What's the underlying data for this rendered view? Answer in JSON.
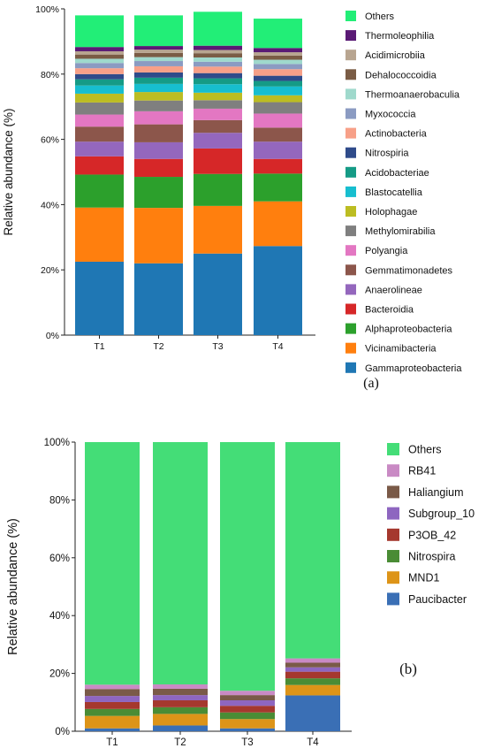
{
  "chart_data": [
    {
      "type": "bar",
      "stacked": true,
      "panel_label": "(a)",
      "ylabel": "Relative abundance (%)",
      "ylim": [
        0,
        100
      ],
      "yticks": [
        "0%",
        "20%",
        "40%",
        "60%",
        "80%",
        "100%"
      ],
      "categories": [
        "T1",
        "T2",
        "T3",
        "T4"
      ],
      "legend_position": "right",
      "series": [
        {
          "name": "Gammaproteobacteria",
          "color": "#1f77b4",
          "values": [
            22.5,
            22.0,
            25.0,
            27.3
          ]
        },
        {
          "name": "Vicinamibacteria",
          "color": "#ff7f0e",
          "values": [
            16.6,
            17.0,
            14.6,
            13.7
          ]
        },
        {
          "name": "Alphaproteobacteria",
          "color": "#2ca02c",
          "values": [
            10.1,
            9.5,
            9.8,
            8.5
          ]
        },
        {
          "name": "Bacteroidia",
          "color": "#d62728",
          "values": [
            5.6,
            5.5,
            7.8,
            4.5
          ]
        },
        {
          "name": "Anaerolineae",
          "color": "#9467bd",
          "values": [
            4.5,
            5.1,
            4.8,
            5.3
          ]
        },
        {
          "name": "Gemmatimonadetes",
          "color": "#8c564b",
          "values": [
            4.6,
            5.5,
            3.9,
            4.3
          ]
        },
        {
          "name": "Polyangia",
          "color": "#e377c2",
          "values": [
            3.7,
            4.0,
            3.5,
            4.3
          ]
        },
        {
          "name": "Methylomirabilia",
          "color": "#7f7f7f",
          "values": [
            3.7,
            3.3,
            2.6,
            3.5
          ]
        },
        {
          "name": "Holophagae",
          "color": "#bcbd22",
          "values": [
            2.7,
            2.6,
            2.3,
            2.1
          ]
        },
        {
          "name": "Blastocatellia",
          "color": "#17becf",
          "values": [
            2.5,
            2.5,
            2.6,
            2.7
          ]
        },
        {
          "name": "Acidobacteriae",
          "color": "#159b86",
          "values": [
            1.9,
            1.9,
            1.8,
            1.7
          ]
        },
        {
          "name": "Nitrospiria",
          "color": "#2f4b8a",
          "values": [
            1.6,
            1.6,
            1.6,
            1.6
          ]
        },
        {
          "name": "Actinobacteria",
          "color": "#f7a088",
          "values": [
            1.8,
            1.9,
            2.0,
            2.0
          ]
        },
        {
          "name": "Myxococcia",
          "color": "#8b9bc2",
          "values": [
            1.6,
            1.6,
            1.5,
            1.6
          ]
        },
        {
          "name": "Thermoanaerobaculia",
          "color": "#9fd9cc",
          "values": [
            1.3,
            1.2,
            1.3,
            1.3
          ]
        },
        {
          "name": "Dehalococcoidia",
          "color": "#7a5c45",
          "values": [
            1.3,
            1.3,
            1.3,
            1.3
          ]
        },
        {
          "name": "Acidimicrobiia",
          "color": "#b8a590",
          "values": [
            1.0,
            1.0,
            1.0,
            1.0
          ]
        },
        {
          "name": "Thermoleophilia",
          "color": "#5a1a75",
          "values": [
            1.3,
            1.1,
            1.3,
            1.3
          ]
        },
        {
          "name": "Others",
          "color": "#22ee77",
          "values": [
            9.7,
            9.4,
            10.4,
            9.0
          ]
        }
      ]
    },
    {
      "type": "bar",
      "stacked": true,
      "panel_label": "(b)",
      "ylabel": "Relative abundance (%)",
      "ylim": [
        0,
        100
      ],
      "yticks": [
        "0%",
        "20%",
        "40%",
        "60%",
        "80%",
        "100%"
      ],
      "categories": [
        "T1",
        "T2",
        "T3",
        "T4"
      ],
      "legend_position": "right",
      "series": [
        {
          "name": "Paucibacter",
          "color": "#3a6fb5",
          "values": [
            1.0,
            2.0,
            1.0,
            12.4
          ]
        },
        {
          "name": "MND1",
          "color": "#dd9418",
          "values": [
            4.3,
            4.0,
            3.2,
            3.6
          ]
        },
        {
          "name": "Nitrospira",
          "color": "#4a8c35",
          "values": [
            2.4,
            2.3,
            2.3,
            2.3
          ]
        },
        {
          "name": "P3OB_42",
          "color": "#a5382e",
          "values": [
            2.4,
            2.4,
            2.3,
            2.3
          ]
        },
        {
          "name": "Subgroup_10",
          "color": "#8e66c0",
          "values": [
            2.1,
            1.8,
            1.9,
            1.5
          ]
        },
        {
          "name": "Haliangium",
          "color": "#7a5a48",
          "values": [
            2.4,
            2.2,
            1.8,
            1.6
          ]
        },
        {
          "name": "RB41",
          "color": "#c98ac4",
          "values": [
            1.5,
            1.5,
            1.5,
            1.5
          ]
        },
        {
          "name": "Others",
          "color": "#44dd77",
          "values": [
            83.9,
            83.8,
            86.0,
            74.8
          ]
        }
      ]
    }
  ]
}
